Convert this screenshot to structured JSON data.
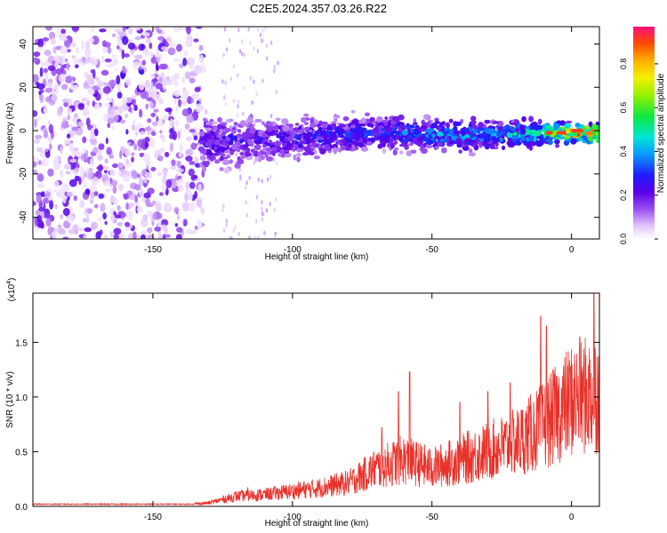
{
  "title": "C2E5.2024.357.03.26.R22",
  "chart_data": [
    {
      "type": "heatmap",
      "title": "C2E5.2024.357.03.26.R22",
      "xlabel": "Height of straight line (km)",
      "ylabel": "Frequency (Hz)",
      "xlim": [
        -193,
        10
      ],
      "ylim": [
        -50,
        48
      ],
      "xticks": [
        -150,
        -100,
        -50,
        0
      ],
      "yticks": [
        -40,
        -20,
        0,
        20,
        40
      ],
      "colorbar": {
        "label": "Normalized spectral amplitude",
        "range": [
          0,
          0.97
        ],
        "ticks": [
          0.0,
          0.2,
          0.4,
          0.6,
          0.8
        ]
      },
      "description_points": [
        {
          "x": -180,
          "y_center": 0,
          "y_spread": 48,
          "amplitude": 0.1
        },
        {
          "x": -150,
          "y_center": 0,
          "y_spread": 48,
          "amplitude": 0.1
        },
        {
          "x": -130,
          "y_center": -6,
          "y_spread": 12,
          "amplitude": 0.25
        },
        {
          "x": -110,
          "y_center": -4,
          "y_spread": 10,
          "amplitude": 0.25
        },
        {
          "x": -90,
          "y_center": -3,
          "y_spread": 9,
          "amplitude": 0.28
        },
        {
          "x": -70,
          "y_center": -1,
          "y_spread": 8,
          "amplitude": 0.3
        },
        {
          "x": -50,
          "y_center": -2,
          "y_spread": 7,
          "amplitude": 0.4
        },
        {
          "x": -30,
          "y_center": -2,
          "y_spread": 7,
          "amplitude": 0.4
        },
        {
          "x": -10,
          "y_center": -1,
          "y_spread": 6,
          "amplitude": 0.5
        },
        {
          "x": 0,
          "y_center": -1,
          "y_spread": 4,
          "amplitude": 0.9
        }
      ]
    },
    {
      "type": "line",
      "xlabel": "Height of straight line (km)",
      "ylabel": "SNR (10 * v/v)",
      "y_multiplier": "(x10",
      "y_multiplier_exp": "4",
      "y_multiplier_close": ")",
      "xlim": [
        -193,
        10
      ],
      "ylim": [
        0,
        1.95
      ],
      "xticks": [
        -150,
        -100,
        -50,
        0
      ],
      "yticks": [
        0.0,
        0.5,
        1.0,
        1.5
      ],
      "color": "#e8312a",
      "envelope": [
        {
          "x": -193,
          "y": 0.02
        },
        {
          "x": -140,
          "y": 0.02
        },
        {
          "x": -130,
          "y": 0.04
        },
        {
          "x": -120,
          "y": 0.12
        },
        {
          "x": -110,
          "y": 0.14
        },
        {
          "x": -100,
          "y": 0.18
        },
        {
          "x": -90,
          "y": 0.22
        },
        {
          "x": -80,
          "y": 0.28
        },
        {
          "x": -70,
          "y": 0.45
        },
        {
          "x": -60,
          "y": 0.55
        },
        {
          "x": -50,
          "y": 0.45
        },
        {
          "x": -40,
          "y": 0.55
        },
        {
          "x": -30,
          "y": 0.65
        },
        {
          "x": -20,
          "y": 0.75
        },
        {
          "x": -10,
          "y": 0.95
        },
        {
          "x": 0,
          "y": 1.25
        },
        {
          "x": 10,
          "y": 1.35
        }
      ],
      "peaks": [
        {
          "x": -116,
          "y": 0.17
        },
        {
          "x": -68,
          "y": 0.72
        },
        {
          "x": -62,
          "y": 1.05
        },
        {
          "x": -58,
          "y": 1.23
        },
        {
          "x": -40,
          "y": 0.95
        },
        {
          "x": -30,
          "y": 1.05
        },
        {
          "x": -22,
          "y": 1.13
        },
        {
          "x": -11,
          "y": 1.74
        },
        {
          "x": -9,
          "y": 1.65
        },
        {
          "x": 3,
          "y": 1.55
        },
        {
          "x": 8,
          "y": 1.95
        }
      ]
    }
  ]
}
